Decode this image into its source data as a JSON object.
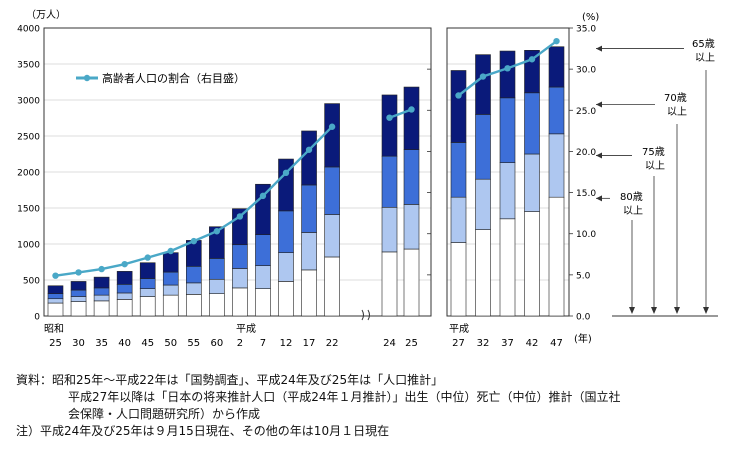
{
  "chart_data": {
    "type": "bar",
    "stacked": true,
    "left_axis": {
      "unit_label": "（万人）",
      "ylim": [
        0,
        4000
      ],
      "ticks": [
        "0",
        "500",
        "1000",
        "1500",
        "2000",
        "2500",
        "3000",
        "3500",
        "4000"
      ]
    },
    "right_axis": {
      "unit_label": "(%)",
      "ylim": [
        0,
        35
      ],
      "ticks": [
        "0.0",
        "5.0",
        "10.0",
        "15.0",
        "20.0",
        "25.0",
        "30.0",
        "35.0"
      ]
    },
    "x_axis": {
      "era_showa": "昭和",
      "era_heisei": "平成",
      "year_unit": "(年)"
    },
    "panel1": [
      {
        "label": "25",
        "segments": [
          180,
          60,
          70,
          110
        ],
        "ratio": 4.9
      },
      {
        "label": "30",
        "segments": [
          200,
          70,
          90,
          120
        ],
        "ratio": 5.3
      },
      {
        "label": "35",
        "segments": [
          210,
          80,
          100,
          150
        ],
        "ratio": 5.7
      },
      {
        "label": "40",
        "segments": [
          230,
          90,
          120,
          180
        ],
        "ratio": 6.3
      },
      {
        "label": "45",
        "segments": [
          270,
          110,
          140,
          220
        ],
        "ratio": 7.1
      },
      {
        "label": "50",
        "segments": [
          290,
          140,
          180,
          270
        ],
        "ratio": 7.9
      },
      {
        "label": "55",
        "segments": [
          300,
          160,
          230,
          360
        ],
        "ratio": 9.1
      },
      {
        "label": "60",
        "segments": [
          310,
          200,
          290,
          440
        ],
        "ratio": 10.3
      },
      {
        "label": "2",
        "segments": [
          390,
          270,
          330,
          500
        ],
        "ratio": 12.1
      },
      {
        "label": "7",
        "segments": [
          380,
          320,
          430,
          700
        ],
        "ratio": 14.6
      },
      {
        "label": "12",
        "segments": [
          480,
          400,
          580,
          720
        ],
        "ratio": 17.4
      },
      {
        "label": "17",
        "segments": [
          640,
          520,
          660,
          750
        ],
        "ratio": 20.2
      },
      {
        "label": "22",
        "segments": [
          820,
          590,
          660,
          880
        ],
        "ratio": 23.0
      },
      {
        "label": "24",
        "segments": [
          890,
          620,
          710,
          850
        ],
        "ratio": 24.1
      },
      {
        "label": "25",
        "segments": [
          930,
          620,
          760,
          870
        ],
        "ratio": 25.1
      }
    ],
    "panel2": [
      {
        "label": "27",
        "segments": [
          1020,
          630,
          760,
          1000
        ],
        "ratio": 26.8
      },
      {
        "label": "32",
        "segments": [
          1200,
          700,
          900,
          830
        ],
        "ratio": 29.1
      },
      {
        "label": "37",
        "segments": [
          1350,
          780,
          900,
          650
        ],
        "ratio": 30.1
      },
      {
        "label": "42",
        "segments": [
          1450,
          800,
          850,
          590
        ],
        "ratio": 31.2
      },
      {
        "label": "47",
        "segments": [
          1650,
          880,
          650,
          560
        ],
        "ratio": 33.4
      }
    ],
    "series": [
      {
        "name": "高齢者人口の割合（右目盛）",
        "type": "line"
      }
    ],
    "segment_colors": [
      "#ffffff",
      "#aec7f0",
      "#3d6fd8",
      "#0a1a7a"
    ],
    "line_color": "#4aa8c7",
    "age_labels": [
      {
        "line1": "65歳",
        "line2": "以上"
      },
      {
        "line1": "70歳",
        "line2": "以上"
      },
      {
        "line1": "75歳",
        "line2": "以上"
      },
      {
        "line1": "80歳",
        "line2": "以上"
      }
    ]
  },
  "notes": {
    "line1": "資料：昭和25年～平成22年は「国勢調査」、平成24年及び25年は「人口推計」",
    "line2": "平成27年以降は「日本の将来推計人口（平成24年１月推計）」出生（中位）死亡（中位）推計（国立社",
    "line3": "会保障・人口問題研究所）から作成",
    "line4": "注）平成24年及び25年は９月15日現在、その他の年は10月１日現在"
  }
}
